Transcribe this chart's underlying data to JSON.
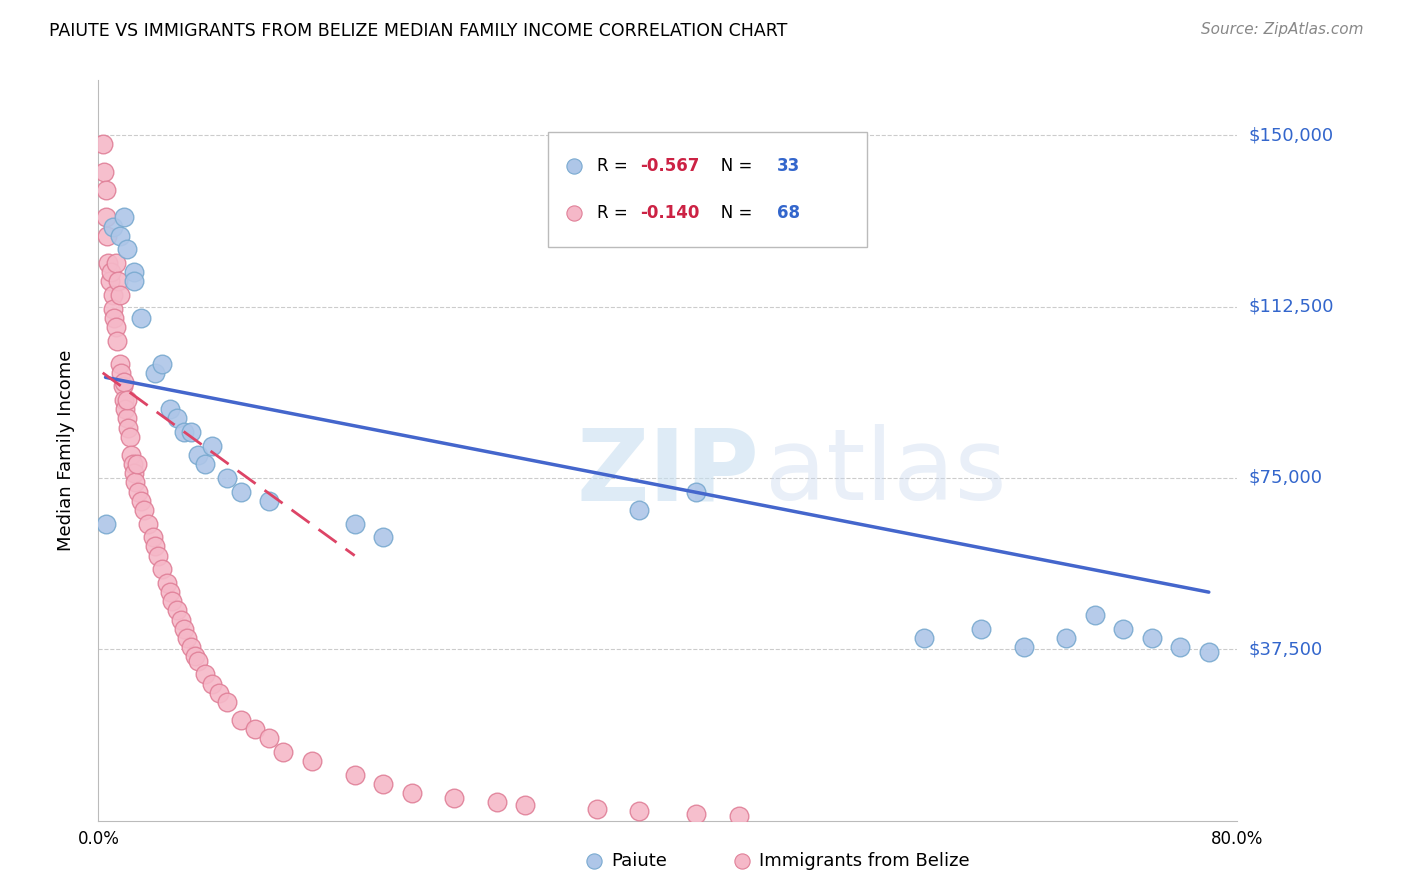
{
  "title": "PAIUTE VS IMMIGRANTS FROM BELIZE MEDIAN FAMILY INCOME CORRELATION CHART",
  "source": "Source: ZipAtlas.com",
  "ylabel": "Median Family Income",
  "yticks": [
    37500,
    75000,
    112500,
    150000
  ],
  "ytick_labels": [
    "$37,500",
    "$75,000",
    "$112,500",
    "$150,000"
  ],
  "legend_r_color": "#cc2244",
  "legend_n_color": "#3366cc",
  "paiute_color": "#aec6e8",
  "paiute_edge_color": "#7aaad0",
  "belize_color": "#f5b8c8",
  "belize_edge_color": "#e08098",
  "trend_paiute_color": "#4466cc",
  "trend_belize_color": "#dd4466",
  "xlim": [
    0.0,
    0.8
  ],
  "ylim": [
    0,
    162000
  ],
  "paiute_x": [
    0.005,
    0.01,
    0.015,
    0.018,
    0.02,
    0.025,
    0.025,
    0.03,
    0.04,
    0.045,
    0.05,
    0.055,
    0.06,
    0.065,
    0.07,
    0.075,
    0.08,
    0.09,
    0.1,
    0.12,
    0.18,
    0.2,
    0.38,
    0.42,
    0.58,
    0.62,
    0.65,
    0.68,
    0.7,
    0.72,
    0.74,
    0.76,
    0.78
  ],
  "paiute_y": [
    65000,
    130000,
    128000,
    132000,
    125000,
    120000,
    118000,
    110000,
    98000,
    100000,
    90000,
    88000,
    85000,
    85000,
    80000,
    78000,
    82000,
    75000,
    72000,
    70000,
    65000,
    62000,
    68000,
    72000,
    40000,
    42000,
    38000,
    40000,
    45000,
    42000,
    40000,
    38000,
    37000
  ],
  "belize_x": [
    0.003,
    0.004,
    0.005,
    0.005,
    0.006,
    0.007,
    0.008,
    0.009,
    0.01,
    0.01,
    0.011,
    0.012,
    0.012,
    0.013,
    0.014,
    0.015,
    0.015,
    0.016,
    0.017,
    0.018,
    0.018,
    0.019,
    0.02,
    0.02,
    0.021,
    0.022,
    0.023,
    0.024,
    0.025,
    0.026,
    0.027,
    0.028,
    0.03,
    0.032,
    0.035,
    0.038,
    0.04,
    0.042,
    0.045,
    0.048,
    0.05,
    0.052,
    0.055,
    0.058,
    0.06,
    0.062,
    0.065,
    0.068,
    0.07,
    0.075,
    0.08,
    0.085,
    0.09,
    0.1,
    0.11,
    0.12,
    0.13,
    0.15,
    0.18,
    0.2,
    0.22,
    0.25,
    0.28,
    0.3,
    0.35,
    0.38,
    0.42,
    0.45
  ],
  "belize_y": [
    148000,
    142000,
    138000,
    132000,
    128000,
    122000,
    118000,
    120000,
    115000,
    112000,
    110000,
    108000,
    122000,
    105000,
    118000,
    115000,
    100000,
    98000,
    95000,
    92000,
    96000,
    90000,
    88000,
    92000,
    86000,
    84000,
    80000,
    78000,
    76000,
    74000,
    78000,
    72000,
    70000,
    68000,
    65000,
    62000,
    60000,
    58000,
    55000,
    52000,
    50000,
    48000,
    46000,
    44000,
    42000,
    40000,
    38000,
    36000,
    35000,
    32000,
    30000,
    28000,
    26000,
    22000,
    20000,
    18000,
    15000,
    13000,
    10000,
    8000,
    6000,
    5000,
    4000,
    3500,
    2500,
    2000,
    1500,
    1000
  ],
  "paiute_trend_x": [
    0.005,
    0.78
  ],
  "paiute_trend_y": [
    97000,
    50000
  ],
  "belize_trend_x": [
    0.003,
    0.18
  ],
  "belize_trend_y": [
    98000,
    58000
  ]
}
